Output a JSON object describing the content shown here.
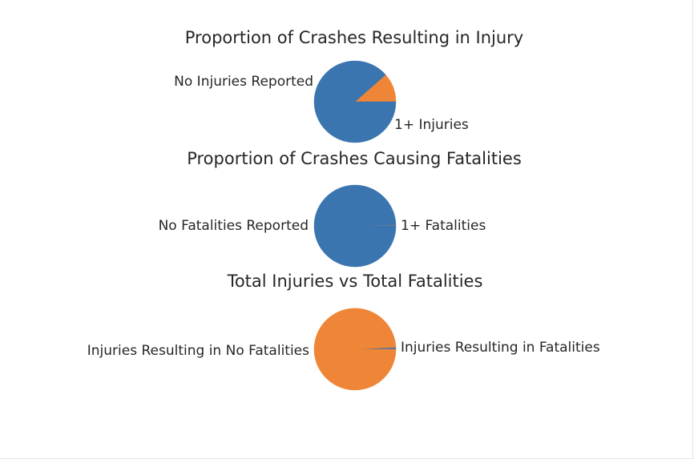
{
  "chart_data": [
    {
      "type": "pie",
      "title": "Proportion of Crashes Resulting in Injury",
      "labels": [
        "1+ Injuries",
        "No Injuries Reported"
      ],
      "values": [
        11.5,
        88.5
      ],
      "colors": [
        "#ef8536",
        "#3b75af"
      ]
    },
    {
      "type": "pie",
      "title": "Proportion of Crashes Causing Fatalities",
      "labels": [
        "1+ Fatalities",
        "No Fatalities Reported"
      ],
      "values": [
        0.3,
        99.7
      ],
      "colors": [
        "#ef8536",
        "#3b75af"
      ]
    },
    {
      "type": "pie",
      "title": "Total Injuries vs Total Fatalities",
      "labels": [
        "Injuries Resulting in Fatalities",
        "Injuries Resulting in No Fatalities"
      ],
      "values": [
        0.8,
        99.2
      ],
      "colors": [
        "#3b75af",
        "#ef8536"
      ]
    }
  ]
}
